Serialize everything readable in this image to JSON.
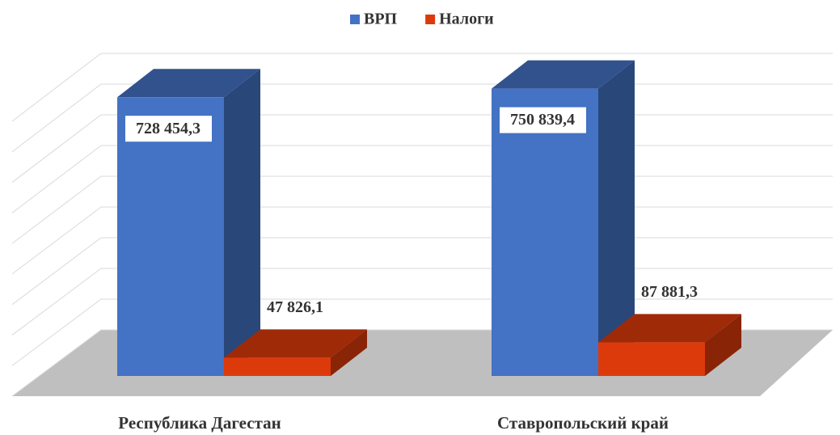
{
  "chart_data": {
    "type": "bar3d",
    "categories": [
      "Республика Дагестан",
      "Ставропольский край"
    ],
    "series": [
      {
        "name": "ВРП",
        "color": "#4472c4",
        "values": [
          728454.3,
          750839.4
        ],
        "value_labels": [
          "728 454,3",
          "750 839,4"
        ]
      },
      {
        "name": "Налоги",
        "color": "#dd3a0b",
        "values": [
          47826.1,
          87881.3
        ],
        "value_labels": [
          "47 826,1",
          "87 881,3"
        ]
      }
    ],
    "ylim": [
      0,
      900000
    ],
    "yticks": [
      0,
      100000,
      200000,
      300000,
      400000,
      500000,
      600000,
      700000,
      800000,
      900000
    ],
    "grid": true,
    "legend": "top"
  }
}
